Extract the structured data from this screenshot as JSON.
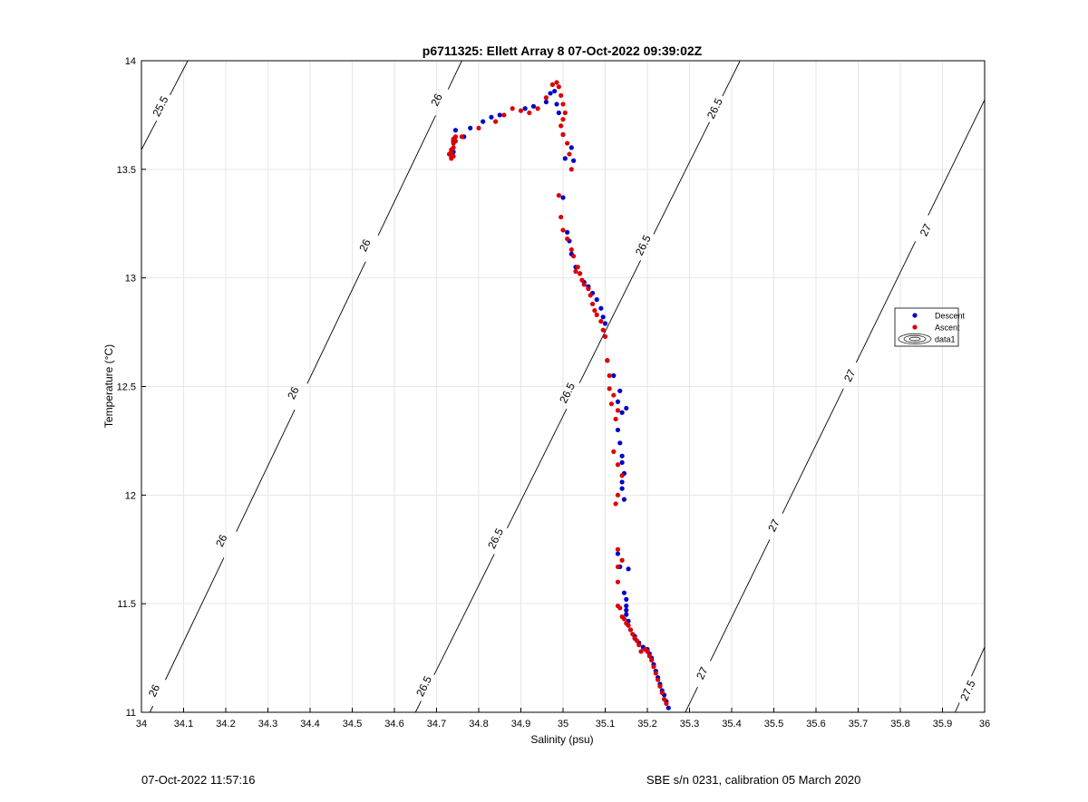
{
  "chart_data": {
    "type": "scatter",
    "title": "p6711325: Ellett Array 8 07-Oct-2022 09:39:02Z",
    "xlabel": "Salinity (psu)",
    "ylabel": "Temperature (°C)",
    "xlim": [
      34,
      36
    ],
    "ylim": [
      11,
      14
    ],
    "xticks": [
      "34",
      "34.1",
      "34.2",
      "34.3",
      "34.4",
      "34.5",
      "34.6",
      "34.7",
      "34.8",
      "34.9",
      "35",
      "35.1",
      "35.2",
      "35.3",
      "35.4",
      "35.5",
      "35.6",
      "35.7",
      "35.8",
      "35.9",
      "36"
    ],
    "yticks": [
      "11",
      "11.5",
      "12",
      "12.5",
      "13",
      "13.5",
      "14"
    ],
    "grid": true,
    "legend_position": "right",
    "legend": [
      "Descent",
      "Ascent",
      "data1"
    ],
    "colors": {
      "descent": "#0000cc",
      "ascent": "#dd0000",
      "contour": "#000000",
      "grid": "#e6e6e6"
    },
    "contours": [
      {
        "level": "25.5",
        "points": [
          [
            34,
            13.59
          ],
          [
            34.11,
            14.0
          ]
        ],
        "labels": [
          {
            "text": "25.5",
            "at": [
              34.045,
              13.79
            ]
          }
        ]
      },
      {
        "level": "26",
        "points": [
          [
            34.02,
            11.0
          ],
          [
            34.76,
            14.0
          ]
        ],
        "labels": [
          {
            "text": "26",
            "at": [
              34.7,
              13.82
            ]
          },
          {
            "text": "26",
            "at": [
              34.53,
              13.15
            ]
          },
          {
            "text": "26",
            "at": [
              34.36,
              12.47
            ]
          },
          {
            "text": "26",
            "at": [
              34.19,
              11.79
            ]
          },
          {
            "text": "26",
            "at": [
              34.03,
              11.1
            ]
          }
        ]
      },
      {
        "level": "26.5",
        "points": [
          [
            34.65,
            11.0
          ],
          [
            35.42,
            14.0
          ]
        ],
        "labels": [
          {
            "text": "26.5",
            "at": [
              35.36,
              13.78
            ]
          },
          {
            "text": "26.5",
            "at": [
              35.19,
              13.15
            ]
          },
          {
            "text": "26.5",
            "at": [
              35.01,
              12.47
            ]
          },
          {
            "text": "26.5",
            "at": [
              34.84,
              11.8
            ]
          },
          {
            "text": "26.5",
            "at": [
              34.67,
              11.12
            ]
          }
        ]
      },
      {
        "level": "27",
        "points": [
          [
            35.29,
            11.0
          ],
          [
            36.0,
            13.82
          ]
        ],
        "labels": [
          {
            "text": "27",
            "at": [
              35.86,
              13.22
            ]
          },
          {
            "text": "27",
            "at": [
              35.68,
              12.55
            ]
          },
          {
            "text": "27",
            "at": [
              35.5,
              11.86
            ]
          },
          {
            "text": "27",
            "at": [
              35.33,
              11.18
            ]
          }
        ]
      },
      {
        "level": "27.5",
        "points": [
          [
            35.93,
            11.0
          ],
          [
            36.0,
            11.3
          ]
        ],
        "labels": [
          {
            "text": "27.5",
            "at": [
              35.96,
              11.1
            ]
          }
        ]
      }
    ],
    "series": [
      {
        "name": "Descent",
        "x": [
          35.25,
          35.245,
          35.24,
          35.235,
          35.23,
          35.225,
          35.22,
          35.215,
          35.21,
          35.205,
          35.2,
          35.19,
          35.18,
          35.17,
          35.16,
          35.155,
          35.15,
          35.15,
          35.15,
          35.15,
          35.145,
          35.13,
          35.135,
          35.155,
          35.145,
          35.14,
          35.14,
          35.145,
          35.14,
          35.14,
          35.135,
          35.13,
          35.14,
          35.15,
          35.135,
          35.13,
          35.12,
          35.105,
          35.1,
          35.095,
          35.09,
          35.08,
          35.07,
          35.06,
          35.05,
          35.04,
          35.03,
          35.02,
          35.015,
          35.01,
          35.0,
          35.005,
          35.02,
          35.025,
          35.0,
          34.99,
          34.985,
          34.98,
          34.97,
          34.96,
          34.93,
          34.91,
          34.85,
          34.83,
          34.81,
          34.78,
          34.765,
          34.74,
          34.74,
          34.745
        ],
        "y": [
          11.02,
          11.05,
          11.08,
          11.1,
          11.13,
          11.16,
          11.19,
          11.22,
          11.25,
          11.27,
          11.29,
          11.3,
          11.32,
          11.35,
          11.38,
          11.42,
          11.45,
          11.47,
          11.49,
          11.52,
          11.55,
          11.73,
          11.67,
          11.66,
          11.98,
          12.03,
          12.06,
          12.1,
          12.15,
          12.18,
          12.24,
          12.3,
          12.38,
          12.4,
          12.48,
          12.43,
          12.55,
          12.62,
          12.79,
          12.82,
          12.86,
          12.9,
          12.93,
          12.96,
          12.98,
          13.02,
          13.05,
          13.11,
          13.17,
          13.21,
          13.37,
          13.55,
          13.6,
          13.54,
          13.66,
          13.76,
          13.8,
          13.86,
          13.85,
          13.81,
          13.79,
          13.78,
          13.75,
          13.74,
          13.72,
          13.69,
          13.65,
          13.63,
          13.58,
          13.68
        ]
      },
      {
        "name": "Ascent",
        "x": [
          35.245,
          35.24,
          35.235,
          35.23,
          35.225,
          35.22,
          35.215,
          35.21,
          35.205,
          35.2,
          35.195,
          35.185,
          35.18,
          35.175,
          35.17,
          35.165,
          35.16,
          35.155,
          35.15,
          35.145,
          35.14,
          35.135,
          35.13,
          35.13,
          35.13,
          35.14,
          35.13,
          35.125,
          35.13,
          35.14,
          35.13,
          35.12,
          35.125,
          35.13,
          35.115,
          35.12,
          35.11,
          35.11,
          35.105,
          35.1,
          35.095,
          35.09,
          35.08,
          35.075,
          35.07,
          35.065,
          35.06,
          35.05,
          35.045,
          35.04,
          35.035,
          35.03,
          35.025,
          35.02,
          35.01,
          35.0,
          34.995,
          34.99,
          35.02,
          35.015,
          35.01,
          35.0,
          34.995,
          35.0,
          35.005,
          35.0,
          34.995,
          34.99,
          34.985,
          34.975,
          34.96,
          34.94,
          34.92,
          34.9,
          34.88,
          34.86,
          34.84,
          34.8,
          34.76,
          34.745,
          34.74,
          34.735,
          34.74,
          34.735,
          34.73,
          34.735,
          34.74,
          34.745,
          34.74,
          34.735
        ],
        "y": [
          11.04,
          11.06,
          11.09,
          11.12,
          11.15,
          11.18,
          11.21,
          11.24,
          11.26,
          11.28,
          11.29,
          11.28,
          11.31,
          11.33,
          11.34,
          11.36,
          11.38,
          11.4,
          11.41,
          11.43,
          11.44,
          11.48,
          11.49,
          11.6,
          11.75,
          11.7,
          11.67,
          11.96,
          12.0,
          12.09,
          12.14,
          12.2,
          12.35,
          12.39,
          12.42,
          12.46,
          12.49,
          12.55,
          12.62,
          12.73,
          12.76,
          12.8,
          12.83,
          12.85,
          12.88,
          12.92,
          12.95,
          12.97,
          12.99,
          13.02,
          13.05,
          13.03,
          13.1,
          13.13,
          13.18,
          13.22,
          13.28,
          13.38,
          13.5,
          13.57,
          13.62,
          13.66,
          13.7,
          13.73,
          13.76,
          13.8,
          13.84,
          13.88,
          13.9,
          13.89,
          13.83,
          13.78,
          13.76,
          13.77,
          13.78,
          13.75,
          13.72,
          13.69,
          13.65,
          13.63,
          13.6,
          13.58,
          13.56,
          13.55,
          13.57,
          13.59,
          13.62,
          13.65,
          13.64,
          13.56
        ]
      }
    ]
  },
  "footer": {
    "left": "07-Oct-2022 11:57:16",
    "right": "SBE s/n 0231, calibration 05 March 2020"
  }
}
